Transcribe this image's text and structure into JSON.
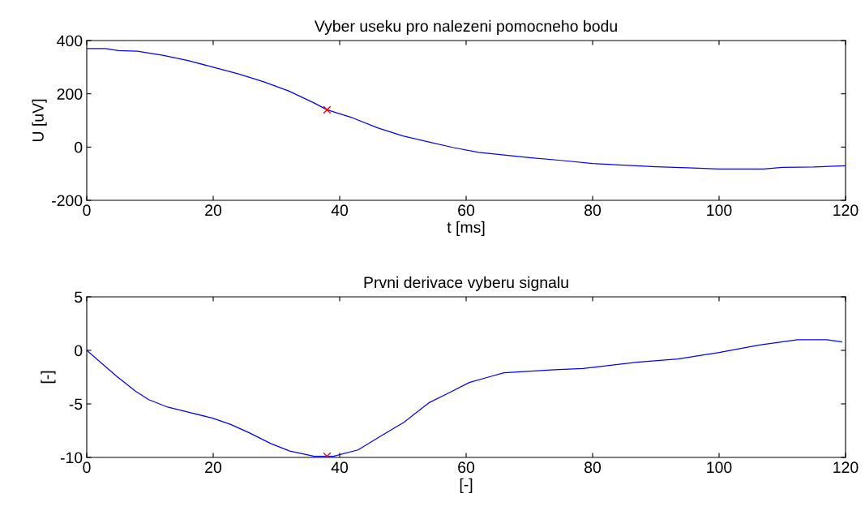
{
  "chart_data": [
    {
      "type": "line",
      "title": "Vyber useku pro nalezeni pomocneho bodu",
      "xlabel": "t [ms]",
      "ylabel": "U [uV]",
      "xlim": [
        0,
        120
      ],
      "xticks": [
        0,
        20,
        40,
        60,
        80,
        100,
        120
      ],
      "ylim": [
        -200,
        400
      ],
      "yticks": [
        -200,
        0,
        200,
        400
      ],
      "grid": false,
      "legend": false,
      "series": [
        {
          "color": "#0000ff",
          "x": [
            0,
            3,
            5,
            8,
            12,
            16,
            20,
            24,
            28,
            32,
            36,
            38,
            42,
            46,
            50,
            54,
            58,
            62,
            66,
            70,
            75,
            80,
            85,
            90,
            95,
            100,
            107,
            110,
            115,
            120
          ],
          "values": [
            370,
            370,
            362,
            360,
            345,
            325,
            300,
            275,
            245,
            210,
            165,
            140,
            110,
            72,
            42,
            20,
            -2,
            -20,
            -30,
            -40,
            -50,
            -62,
            -68,
            -74,
            -78,
            -82,
            -82,
            -76,
            -75,
            -70
          ]
        },
        {
          "type": "scatter",
          "marker": "cross",
          "color": "#ff0000",
          "x": [
            38
          ],
          "values": [
            140
          ]
        }
      ]
    },
    {
      "type": "line",
      "title": "Prvni derivace vyberu signalu",
      "xlabel": "[-]",
      "ylabel": "[-]",
      "xlim": [
        0,
        120
      ],
      "xticks": [
        0,
        20,
        40,
        60,
        80,
        100,
        120
      ],
      "ylim": [
        -10,
        5
      ],
      "yticks": [
        -10,
        -5,
        0,
        5
      ],
      "grid": false,
      "legend": false,
      "series": [
        {
          "color": "#0000ff",
          "x": [
            0,
            4.7,
            7.7,
            9.8,
            12.8,
            19.7,
            22.7,
            25.7,
            29.1,
            32.1,
            36,
            39,
            42.9,
            46.8,
            50.2,
            54.1,
            57.5,
            60.5,
            63.5,
            66,
            74,
            78.5,
            87,
            93.5,
            100,
            106.4,
            112.4,
            117,
            119.4
          ],
          "values": [
            0,
            -2.4,
            -3.8,
            -4.6,
            -5.3,
            -6.3,
            -6.9,
            -7.7,
            -8.7,
            -9.4,
            -9.9,
            -9.9,
            -9.3,
            -7.9,
            -6.7,
            -4.9,
            -3.9,
            -3.0,
            -2.5,
            -2.1,
            -1.8,
            -1.7,
            -1.1,
            -0.8,
            -0.2,
            0.5,
            1.0,
            1.0,
            0.8
          ]
        },
        {
          "type": "scatter",
          "marker": "cross",
          "color": "#ff0000",
          "x": [
            38
          ],
          "values": [
            -9.9
          ]
        }
      ]
    }
  ]
}
